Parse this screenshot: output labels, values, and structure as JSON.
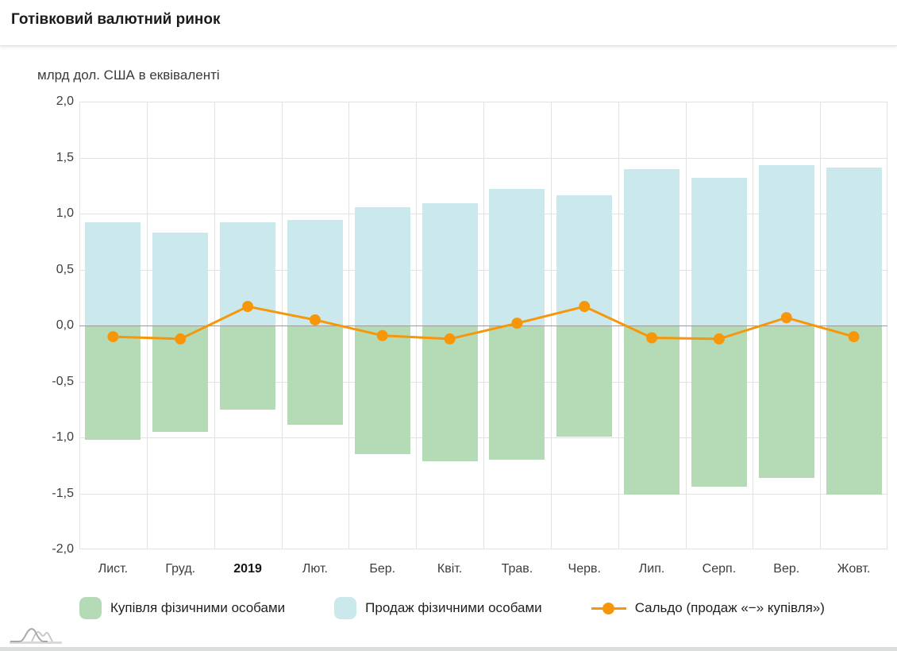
{
  "header": {
    "title": "Готівковий валютний ринок"
  },
  "chart_data": {
    "type": "bar+line",
    "title": "Готівковий валютний ринок",
    "ylabel": "млрд дол. США в еквіваленті",
    "categories": [
      "Лист.",
      "Груд.",
      "2019",
      "Лют.",
      "Бер.",
      "Квіт.",
      "Трав.",
      "Черв.",
      "Лип.",
      "Серп.",
      "Вер.",
      "Жовт."
    ],
    "bold_category_index": 2,
    "series": [
      {
        "name": "Купівля фізичними особами",
        "type": "bar",
        "color": "#b4dbb6",
        "values": [
          -1.02,
          -0.95,
          -0.75,
          -0.89,
          -1.15,
          -1.21,
          -1.2,
          -0.99,
          -1.51,
          -1.44,
          -1.36,
          -1.51
        ]
      },
      {
        "name": "Продаж фізичними особами",
        "type": "bar",
        "color": "#cbe8ec",
        "values": [
          0.92,
          0.83,
          0.92,
          0.94,
          1.06,
          1.09,
          1.22,
          1.16,
          1.4,
          1.32,
          1.43,
          1.41
        ]
      },
      {
        "name": "Сальдо (продаж «−» купівля»)",
        "type": "line",
        "color": "#f8960a",
        "values": [
          -0.1,
          -0.12,
          0.17,
          0.05,
          -0.09,
          -0.12,
          0.02,
          0.17,
          -0.11,
          -0.12,
          0.07,
          -0.1
        ]
      }
    ],
    "ylim": [
      -2.0,
      2.0
    ],
    "ytick_step": 0.5,
    "yticklabels": [
      "2,0",
      "1,5",
      "1,0",
      "0,5",
      "0,0",
      "-0,5",
      "-1,0",
      "-1,5",
      "-2,0"
    ],
    "grid": true,
    "legend_position": "bottom",
    "zero_line_color": "#9b9b9b",
    "grid_color": "#e2e2e2"
  }
}
